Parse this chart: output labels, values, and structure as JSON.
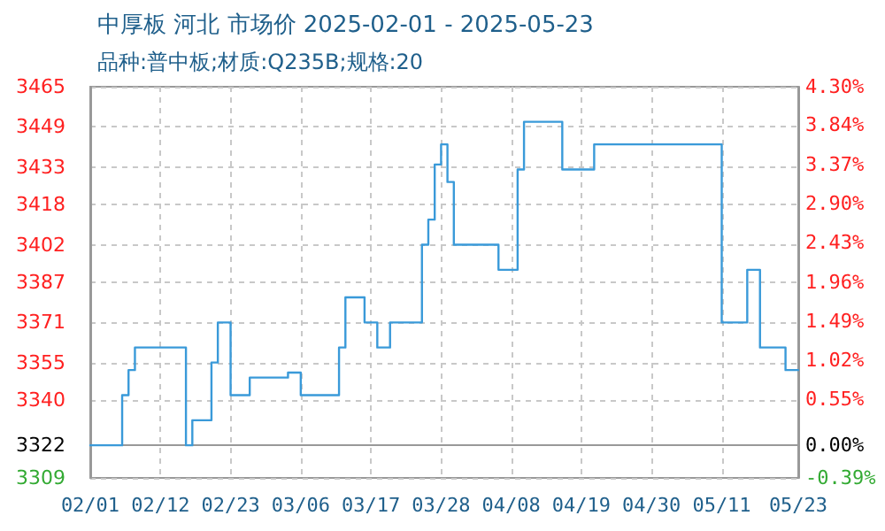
{
  "chart_data": {
    "type": "step",
    "title": "中厚板 河北 市场价 2025-02-01 - 2025-05-23",
    "subtitle": "品种:普中板;材质:Q235B;规格:20",
    "x": [
      "2025-02-01",
      "2025-02-06",
      "2025-02-07",
      "2025-02-08",
      "2025-02-16",
      "2025-02-17",
      "2025-02-20",
      "2025-02-21",
      "2025-02-23",
      "2025-02-26",
      "2025-03-04",
      "2025-03-06",
      "2025-03-12",
      "2025-03-13",
      "2025-03-16",
      "2025-03-18",
      "2025-03-20",
      "2025-03-25",
      "2025-03-26",
      "2025-03-27",
      "2025-03-28",
      "2025-03-29",
      "2025-03-30",
      "2025-04-06",
      "2025-04-09",
      "2025-04-10",
      "2025-04-16",
      "2025-04-21",
      "2025-05-11",
      "2025-05-15",
      "2025-05-17",
      "2025-05-21",
      "2025-05-23"
    ],
    "series": [
      {
        "color": "#3a9ad9",
        "values": [
          3322,
          3342,
          3352,
          3361,
          3322,
          3332,
          3355,
          3371,
          3342,
          3349,
          3351,
          3342,
          3361,
          3381,
          3371,
          3361,
          3371,
          3402,
          3412,
          3434,
          3442,
          3427,
          3402,
          3392,
          3432,
          3451,
          3432,
          3442,
          3371,
          3392,
          3361,
          3352,
          3352
        ]
      }
    ],
    "xlim": [
      "2025-02-01",
      "2025-05-23"
    ],
    "xticks": [
      {
        "value": "2025-02-01",
        "label": "02/01"
      },
      {
        "value": "2025-02-12",
        "label": "02/12"
      },
      {
        "value": "2025-02-23",
        "label": "02/23"
      },
      {
        "value": "2025-03-06",
        "label": "03/06"
      },
      {
        "value": "2025-03-17",
        "label": "03/17"
      },
      {
        "value": "2025-03-28",
        "label": "03/28"
      },
      {
        "value": "2025-04-08",
        "label": "04/08"
      },
      {
        "value": "2025-04-19",
        "label": "04/19"
      },
      {
        "value": "2025-04-30",
        "label": "04/30"
      },
      {
        "value": "2025-05-11",
        "label": "05/11"
      },
      {
        "value": "2025-05-23",
        "label": "05/23"
      }
    ],
    "ylim": [
      3309,
      3465
    ],
    "yticks": [
      3309,
      3322,
      3340,
      3355,
      3371,
      3387,
      3402,
      3418,
      3433,
      3449,
      3465
    ],
    "y2lim": [
      -0.39,
      4.3
    ],
    "y2ticks": [
      {
        "value": -0.39,
        "label": "-0.39%"
      },
      {
        "value": 0,
        "label": "0.00%"
      },
      {
        "value": 0.55,
        "label": "0.55%"
      },
      {
        "value": 1.02,
        "label": "1.02%"
      },
      {
        "value": 1.49,
        "label": "1.49%"
      },
      {
        "value": 1.96,
        "label": "1.96%"
      },
      {
        "value": 2.43,
        "label": "2.43%"
      },
      {
        "value": 2.9,
        "label": "2.90%"
      },
      {
        "value": 3.37,
        "label": "3.37%"
      },
      {
        "value": 3.84,
        "label": "3.84%"
      },
      {
        "value": 4.3,
        "label": "4.30%"
      }
    ],
    "grid": true,
    "marker": "none",
    "line_style": "solid"
  }
}
